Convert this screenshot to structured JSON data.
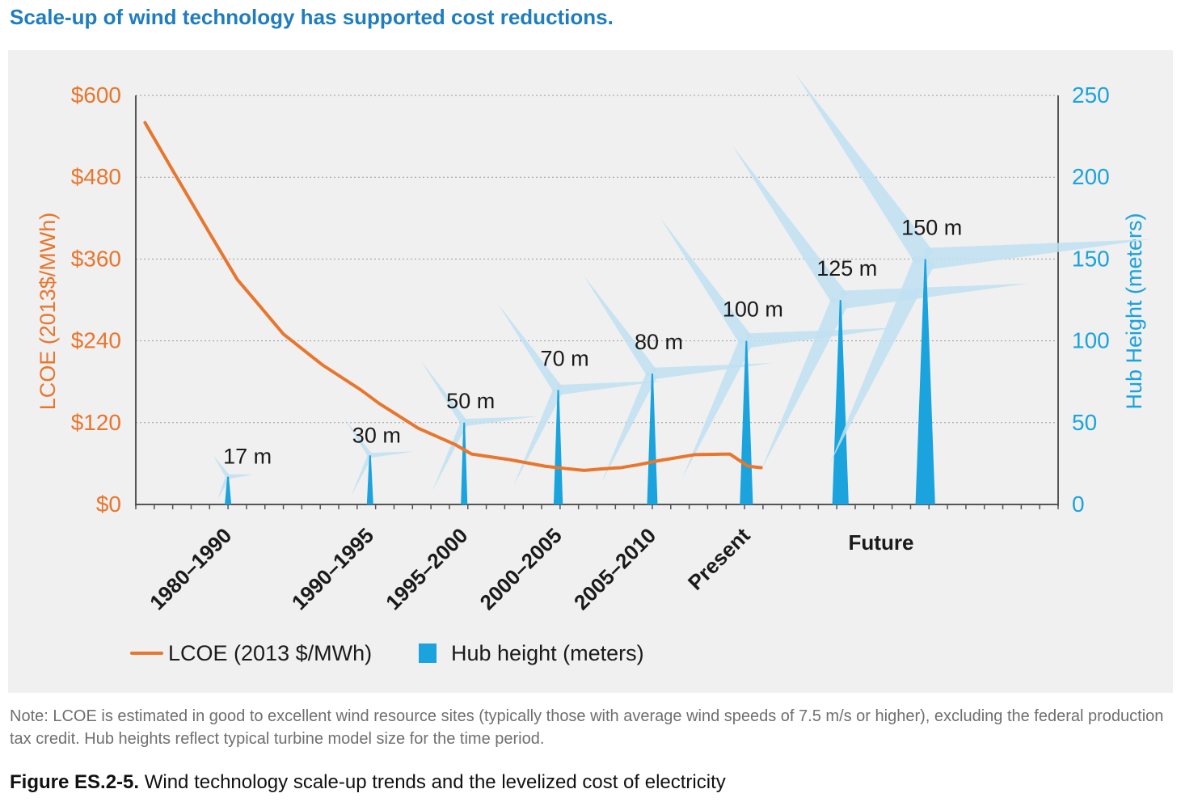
{
  "page": {
    "title": "Scale-up of wind technology has supported cost reductions.",
    "note": "Note: LCOE is estimated in good to excellent wind resource sites (typically those with average wind speeds of 7.5 m/s or higher), excluding the federal production tax credit. Hub heights reflect typical turbine model size for the time period.",
    "caption_label": "Figure ES.2-5.",
    "caption_text": "Wind technology scale-up trends and the levelized cost of electricity"
  },
  "colors": {
    "lcoe": "#e8762d",
    "hub": "#1aa3dc",
    "blade": "#bfe0f2",
    "grid": "#9a9a9a",
    "axis": "#555555",
    "panel": "#f0f0f0"
  },
  "chart_data": {
    "type": "line+bar",
    "ylabel_left": "LCOE (2013$/MWh)",
    "ylabel_right": "Hub Height (meters)",
    "y_left": {
      "min": 0,
      "max": 600,
      "ticks": [
        "$0",
        "$120",
        "$240",
        "$360",
        "$480",
        "$600"
      ],
      "tick_values": [
        0,
        120,
        240,
        360,
        480,
        600
      ]
    },
    "y_right": {
      "min": 0,
      "max": 250,
      "ticks": [
        "0",
        "50",
        "100",
        "150",
        "200",
        "250"
      ],
      "tick_values": [
        0,
        50,
        100,
        150,
        200,
        250
      ]
    },
    "x_axis": {
      "min": 1980,
      "max": 2030,
      "minor_tick_step": 1
    },
    "grid": true,
    "categories": [
      {
        "label": "1980–1990",
        "x": 1985.0
      },
      {
        "label": "1990–1995",
        "x": 1992.7
      },
      {
        "label": "1995–2000",
        "x": 1997.8
      },
      {
        "label": "2000–2005",
        "x": 2002.9
      },
      {
        "label": "2005–2010",
        "x": 2008.0
      },
      {
        "label": "Present",
        "x": 2013.1
      }
    ],
    "future_label": "Future",
    "lcoe": {
      "name": "LCOE (2013 $/MWh)",
      "x": [
        1980.5,
        1982,
        1984,
        1985.5,
        1986.6,
        1988,
        1990.1,
        1992.2,
        1993.2,
        1995.3,
        1996.3,
        1997.3,
        1998.2,
        2000.2,
        2002.2,
        2003.2,
        2004.3,
        2005.2,
        2006.3,
        2007.2,
        2008.3,
        2009.2,
        2010.3,
        2012.2,
        2013.2,
        2013.9
      ],
      "y": [
        560,
        490,
        398,
        330,
        295,
        250,
        205,
        168,
        148,
        112,
        100,
        88,
        74,
        66,
        56,
        53,
        50,
        52,
        54,
        58,
        64,
        68,
        73,
        74,
        56,
        54
      ]
    },
    "hub_height": {
      "name": "Hub height (meters)",
      "series": [
        {
          "x": 1985.0,
          "value": 17,
          "label": "17 m"
        },
        {
          "x": 1992.7,
          "value": 30,
          "label": "30 m"
        },
        {
          "x": 1997.8,
          "value": 50,
          "label": "50 m"
        },
        {
          "x": 2002.9,
          "value": 70,
          "label": "70 m"
        },
        {
          "x": 2008.0,
          "value": 80,
          "label": "80 m"
        },
        {
          "x": 2013.1,
          "value": 100,
          "label": "100 m"
        },
        {
          "x": 2018.2,
          "value": 125,
          "label": "125 m"
        },
        {
          "x": 2022.8,
          "value": 150,
          "label": "150 m"
        }
      ]
    },
    "legend": {
      "position": "bottom-left"
    }
  }
}
